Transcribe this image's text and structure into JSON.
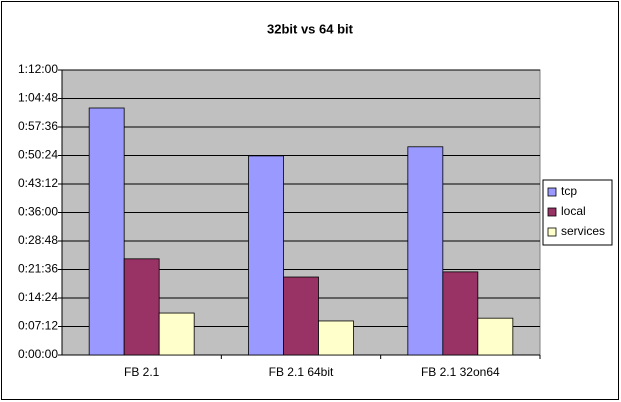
{
  "chart_data": {
    "type": "bar",
    "title": "32bit vs 64 bit",
    "categories": [
      "FB 2.1",
      "FB 2.1 64bit",
      "FB 2.1 32on64"
    ],
    "series": [
      {
        "name": "tcp",
        "color": "#9999ff",
        "values": [
          62.4,
          50.3,
          52.6
        ]
      },
      {
        "name": "local",
        "color": "#993366",
        "values": [
          24.3,
          19.7,
          21.0
        ]
      },
      {
        "name": "services",
        "color": "#ffffcc",
        "values": [
          10.6,
          8.6,
          9.3
        ]
      }
    ],
    "ylim": [
      0,
      72
    ],
    "yticks": [
      {
        "value": 0,
        "label": "0:00:00"
      },
      {
        "value": 7.2,
        "label": "0:07:12"
      },
      {
        "value": 14.4,
        "label": "0:14:24"
      },
      {
        "value": 21.6,
        "label": "0:21:36"
      },
      {
        "value": 28.8,
        "label": "0:28:48"
      },
      {
        "value": 36,
        "label": "0:36:00"
      },
      {
        "value": 43.2,
        "label": "0:43:12"
      },
      {
        "value": 50.4,
        "label": "0:50:24"
      },
      {
        "value": 57.6,
        "label": "0:57:36"
      },
      {
        "value": 64.8,
        "label": "1:04:48"
      },
      {
        "value": 72,
        "label": "1:12:00"
      }
    ],
    "grid": true,
    "legend": "right"
  }
}
